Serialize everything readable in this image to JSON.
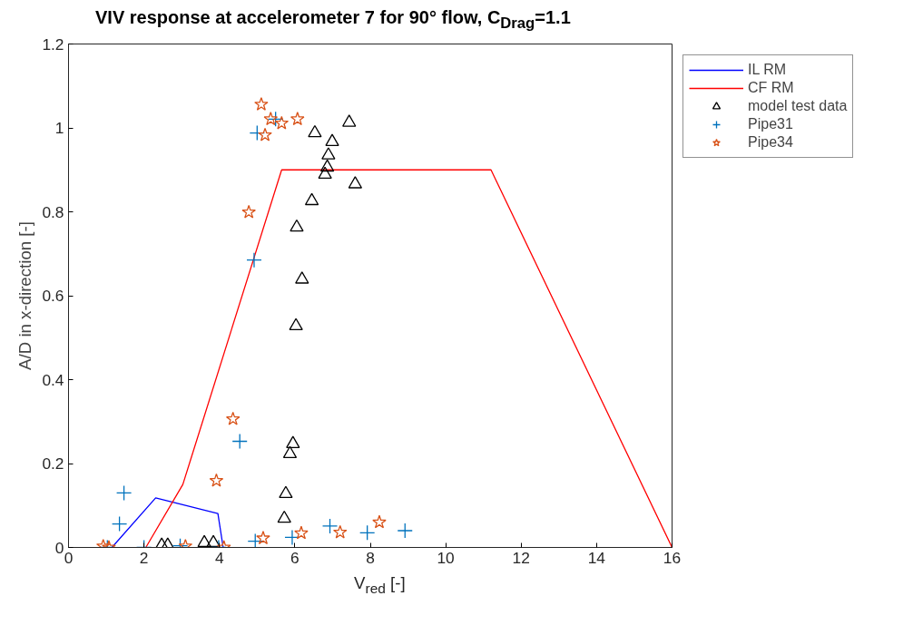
{
  "chart_data": {
    "type": "scatter",
    "title": "VIV response at accelerometer 7 for 90° flow, C$_{Drag}$=1.1",
    "xlabel": "V$_{red}$ [-]",
    "ylabel": "A/D in x-direction [-]",
    "xlim": [
      0,
      16
    ],
    "ylim": [
      0,
      1.2
    ],
    "xticks": [
      0,
      2,
      4,
      6,
      8,
      10,
      12,
      14,
      16
    ],
    "yticks": [
      0,
      0.2,
      0.4,
      0.6,
      0.8,
      1,
      1.2
    ],
    "grid": false,
    "legend": "top right",
    "series": [
      {
        "name": "IL RM",
        "type": "line",
        "color": "#0000ff",
        "marker": "none",
        "x": [
          1.15,
          2.31,
          3.96,
          4.1
        ],
        "values": [
          0,
          0.118,
          0.081,
          0
        ]
      },
      {
        "name": "CF RM",
        "type": "line",
        "color": "#ff0000",
        "marker": "none",
        "x": [
          2.05,
          3.03,
          5.65,
          11.2,
          16
        ],
        "values": [
          0,
          0.15,
          0.9,
          0.9,
          0
        ]
      },
      {
        "name": "model test data",
        "color": "#000000",
        "marker": "triangle",
        "x": [
          7.44,
          6.53,
          6.99,
          6.89,
          6.86,
          6.8,
          7.6,
          6.45,
          6.05,
          6.19,
          6.03,
          5.95,
          5.87,
          5.76,
          5.72,
          2.47,
          2.63,
          3.6,
          3.84
        ],
        "values": [
          1.013,
          0.988,
          0.967,
          0.935,
          0.906,
          0.889,
          0.866,
          0.826,
          0.763,
          0.639,
          0.528,
          0.247,
          0.223,
          0.128,
          0.069,
          0.005,
          0.005,
          0.011,
          0.011
        ]
      },
      {
        "name": "Pipe31",
        "color": "#0072bd",
        "marker": "cross",
        "x": [
          5.0,
          5.49,
          4.92,
          4.54,
          1.47,
          1.35,
          1.03,
          2.0,
          2.96,
          3.98,
          4.95,
          5.93,
          6.93,
          7.92,
          8.92
        ],
        "values": [
          0.988,
          1.021,
          0.685,
          0.253,
          0.13,
          0.056,
          0,
          0,
          0.004,
          0,
          0.015,
          0.024,
          0.051,
          0.035,
          0.04
        ]
      },
      {
        "name": "Pipe34",
        "color": "#d95319",
        "marker": "star",
        "x": [
          5.11,
          5.36,
          5.65,
          6.07,
          5.21,
          4.78,
          4.36,
          3.92,
          0.92,
          1.07,
          3.1,
          4.12,
          5.16,
          6.17,
          7.2,
          8.24
        ],
        "values": [
          1.056,
          1.021,
          1.011,
          1.021,
          0.983,
          0.799,
          0.306,
          0.159,
          0.003,
          0,
          0.003,
          0,
          0.022,
          0.034,
          0.036,
          0.06
        ]
      }
    ]
  }
}
